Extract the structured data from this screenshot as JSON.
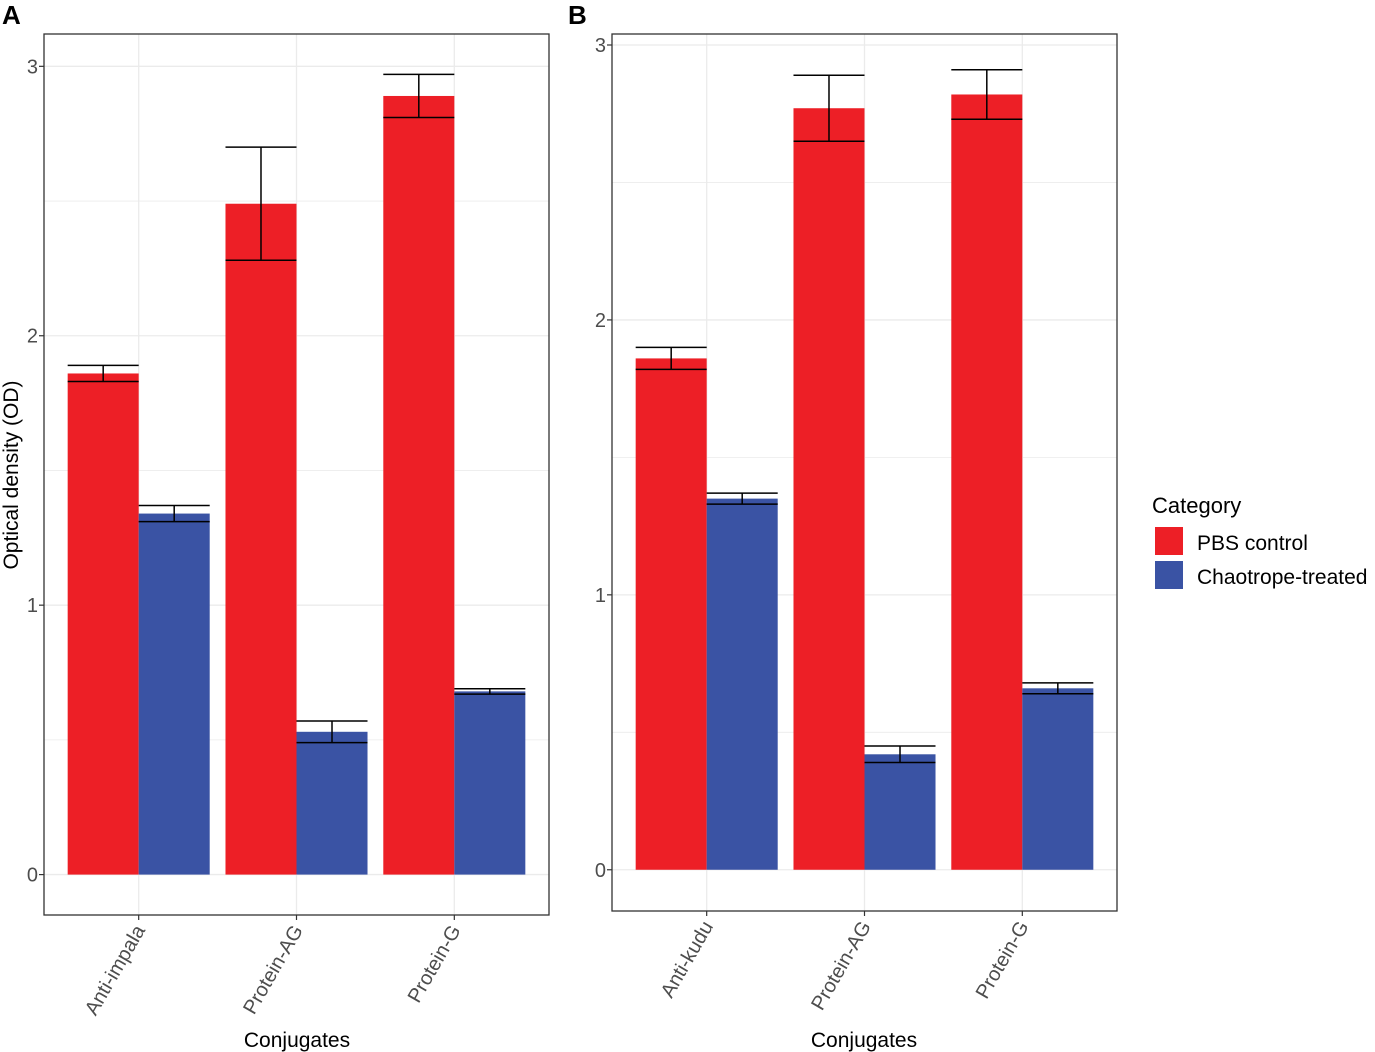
{
  "chart_data": [
    {
      "type": "bar",
      "panel": "A",
      "categories": [
        "Anti-impala",
        "Protein-AG",
        "Protein-G"
      ],
      "series": [
        {
          "name": "PBS control",
          "values": [
            1.86,
            2.49,
            2.89
          ],
          "errors": [
            0.03,
            0.21,
            0.08
          ]
        },
        {
          "name": "Chaotrope-treated",
          "values": [
            1.34,
            0.53,
            0.68
          ],
          "errors": [
            0.03,
            0.04,
            0.01
          ]
        }
      ],
      "title": "",
      "xlabel": "Conjugates",
      "ylabel": "Optical density (OD)",
      "ylim": [
        -0.15,
        3.12
      ],
      "yticks": [
        "0",
        "1",
        "2",
        "3"
      ],
      "grid": true
    },
    {
      "type": "bar",
      "panel": "B",
      "categories": [
        "Anti-kudu",
        "Protein-AG",
        "Protein-G"
      ],
      "series": [
        {
          "name": "PBS control",
          "values": [
            1.86,
            2.77,
            2.82
          ],
          "errors": [
            0.04,
            0.12,
            0.09
          ]
        },
        {
          "name": "Chaotrope-treated",
          "values": [
            1.35,
            0.42,
            0.66
          ],
          "errors": [
            0.02,
            0.03,
            0.02
          ]
        }
      ],
      "title": "",
      "xlabel": "Conjugates",
      "ylabel": "",
      "ylim": [
        -0.15,
        3.04
      ],
      "yticks": [
        "0",
        "1",
        "2",
        "3"
      ],
      "grid": true
    }
  ],
  "legend": {
    "title": "Category",
    "items": [
      {
        "label": "PBS control",
        "color": "#ed1f26"
      },
      {
        "label": "Chaotrope-treated",
        "color": "#3a53a4"
      }
    ]
  },
  "colors": {
    "pbs": "#ed1f26",
    "chaotrope": "#3a53a4",
    "grid": "#ebebeb",
    "frame": "#333333",
    "error": "#000000"
  }
}
